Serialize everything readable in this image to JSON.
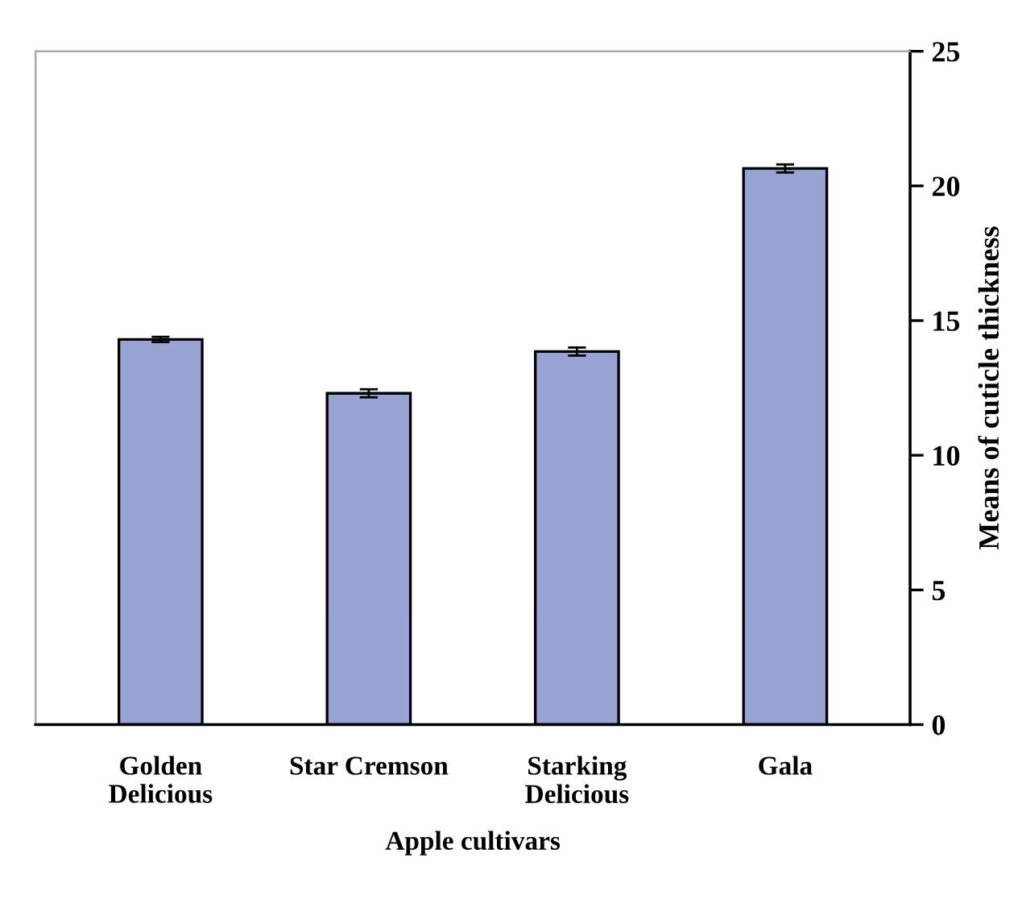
{
  "chart_data": {
    "type": "bar",
    "xlabel": "Apple cultivars",
    "ylabel": "Means of cuticle thickness",
    "categories": [
      "Golden\nDelicious",
      "Star Cremson",
      "Starking\nDelicious",
      "Gala"
    ],
    "values": [
      14.3,
      12.3,
      13.85,
      20.65
    ],
    "errors": [
      0.1,
      0.15,
      0.15,
      0.15
    ],
    "color": "#99a3d3",
    "ylim": [
      0,
      25
    ],
    "yticks": [
      0,
      5,
      10,
      15,
      20,
      25
    ],
    "grid": false,
    "legend": false
  }
}
